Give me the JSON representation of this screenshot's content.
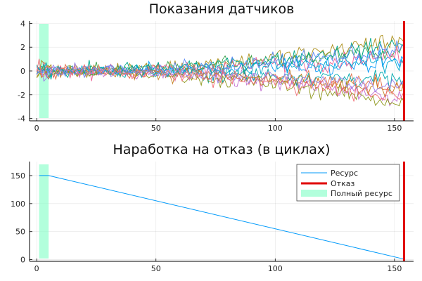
{
  "chart_data": [
    {
      "type": "line",
      "title": "Показания датчиков",
      "xlim": [
        -3,
        158
      ],
      "ylim": [
        -4.2,
        4.2
      ],
      "xticks": [
        0,
        50,
        100,
        150
      ],
      "yticks": [
        -4,
        -2,
        0,
        2,
        4
      ],
      "grid": true,
      "series_count": 14,
      "series_colors": [
        "#009AFA",
        "#E36F47",
        "#3EA44E",
        "#C371D2",
        "#AC8E18",
        "#00A9AD",
        "#ED5E93",
        "#C68225",
        "#00A98D",
        "#8E971D",
        "#00A9CD",
        "#9B7FE8",
        "#618DF6",
        "#F16C75"
      ],
      "x_end": 154,
      "spread_start": 0.7,
      "spread_end": 1.7,
      "noise": 0.55,
      "span": {
        "x": [
          1,
          5
        ],
        "color": "#7FFFC4"
      },
      "vline": {
        "x": 154,
        "color": "#E00000"
      }
    },
    {
      "type": "line",
      "title": "Наработка на отказ (в циклах)",
      "xlim": [
        -3,
        158
      ],
      "ylim": [
        -3,
        175
      ],
      "xticks": [
        0,
        50,
        100,
        150
      ],
      "yticks": [
        0,
        50,
        100,
        150
      ],
      "grid": true,
      "series": [
        {
          "name": "Ресурс",
          "color": "#009AFA",
          "x": [
            1,
            5,
            154
          ],
          "y": [
            150,
            150,
            1
          ]
        }
      ],
      "vline": {
        "x": 154,
        "color": "#E00000",
        "name": "Отказ"
      },
      "span": {
        "x": [
          1,
          5
        ],
        "color": "#7FFFC4",
        "name": "Полный ресурс"
      },
      "legend": "top-right"
    }
  ]
}
